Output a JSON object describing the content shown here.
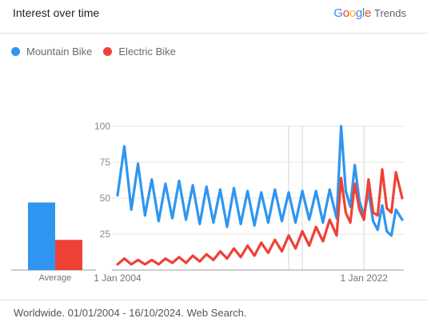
{
  "header": {
    "title": "Interest over time"
  },
  "brand": {
    "google": "Google",
    "trends": "Trends"
  },
  "colors": {
    "series1": "#2e96f0",
    "series2": "#ef4136",
    "google_blue": "#4285F4",
    "google_red": "#EA4335",
    "google_yellow": "#FBBC05",
    "google_green": "#34A853"
  },
  "chart_data": {
    "type": "line",
    "ylim": [
      0,
      100
    ],
    "yticks": [
      "100",
      "75",
      "50",
      "25"
    ],
    "xtick_labels": [
      "1 Jan 2004",
      "1 Jan 2022"
    ],
    "average_label": "Average",
    "series": [
      {
        "name": "Mountain Bike",
        "average": 47,
        "points": [
          [
            "2004-01-01",
            52
          ],
          [
            "2004-07-01",
            86
          ],
          [
            "2005-01-01",
            42
          ],
          [
            "2005-07-01",
            74
          ],
          [
            "2006-01-01",
            38
          ],
          [
            "2006-07-01",
            63
          ],
          [
            "2007-01-01",
            34
          ],
          [
            "2007-07-01",
            60
          ],
          [
            "2008-01-01",
            36
          ],
          [
            "2008-07-01",
            62
          ],
          [
            "2009-01-01",
            35
          ],
          [
            "2009-07-01",
            59
          ],
          [
            "2010-01-01",
            32
          ],
          [
            "2010-07-01",
            58
          ],
          [
            "2011-01-01",
            33
          ],
          [
            "2011-07-01",
            56
          ],
          [
            "2012-01-01",
            30
          ],
          [
            "2012-07-01",
            57
          ],
          [
            "2013-01-01",
            32
          ],
          [
            "2013-07-01",
            55
          ],
          [
            "2014-01-01",
            31
          ],
          [
            "2014-07-01",
            54
          ],
          [
            "2015-01-01",
            33
          ],
          [
            "2015-07-01",
            56
          ],
          [
            "2016-01-01",
            34
          ],
          [
            "2016-07-01",
            54
          ],
          [
            "2017-01-01",
            33
          ],
          [
            "2017-07-01",
            55
          ],
          [
            "2018-01-01",
            35
          ],
          [
            "2018-07-01",
            55
          ],
          [
            "2019-01-01",
            33
          ],
          [
            "2019-07-01",
            56
          ],
          [
            "2020-01-01",
            36
          ],
          [
            "2020-05-01",
            100
          ],
          [
            "2020-09-01",
            55
          ],
          [
            "2021-01-01",
            44
          ],
          [
            "2021-05-01",
            73
          ],
          [
            "2021-09-01",
            48
          ],
          [
            "2022-01-01",
            38
          ],
          [
            "2022-05-01",
            55
          ],
          [
            "2022-09-01",
            34
          ],
          [
            "2023-01-01",
            28
          ],
          [
            "2023-05-01",
            45
          ],
          [
            "2023-09-01",
            27
          ],
          [
            "2024-01-01",
            24
          ],
          [
            "2024-05-01",
            42
          ],
          [
            "2024-10-16",
            35
          ]
        ]
      },
      {
        "name": "Electric Bike",
        "average": 21,
        "points": [
          [
            "2004-01-01",
            4
          ],
          [
            "2004-07-01",
            8
          ],
          [
            "2005-01-01",
            4
          ],
          [
            "2005-07-01",
            7
          ],
          [
            "2006-01-01",
            4
          ],
          [
            "2006-07-01",
            7
          ],
          [
            "2007-01-01",
            4
          ],
          [
            "2007-07-01",
            8
          ],
          [
            "2008-01-01",
            5
          ],
          [
            "2008-07-01",
            9
          ],
          [
            "2009-01-01",
            5
          ],
          [
            "2009-07-01",
            10
          ],
          [
            "2010-01-01",
            6
          ],
          [
            "2010-07-01",
            11
          ],
          [
            "2011-01-01",
            7
          ],
          [
            "2011-07-01",
            13
          ],
          [
            "2012-01-01",
            8
          ],
          [
            "2012-07-01",
            15
          ],
          [
            "2013-01-01",
            9
          ],
          [
            "2013-07-01",
            17
          ],
          [
            "2014-01-01",
            10
          ],
          [
            "2014-07-01",
            19
          ],
          [
            "2015-01-01",
            12
          ],
          [
            "2015-07-01",
            21
          ],
          [
            "2016-01-01",
            13
          ],
          [
            "2016-07-01",
            24
          ],
          [
            "2017-01-01",
            15
          ],
          [
            "2017-07-01",
            27
          ],
          [
            "2018-01-01",
            17
          ],
          [
            "2018-07-01",
            30
          ],
          [
            "2019-01-01",
            20
          ],
          [
            "2019-07-01",
            35
          ],
          [
            "2020-01-01",
            24
          ],
          [
            "2020-05-01",
            64
          ],
          [
            "2020-09-01",
            40
          ],
          [
            "2021-01-01",
            33
          ],
          [
            "2021-05-01",
            60
          ],
          [
            "2021-09-01",
            42
          ],
          [
            "2022-01-01",
            35
          ],
          [
            "2022-05-01",
            63
          ],
          [
            "2022-09-01",
            40
          ],
          [
            "2023-01-01",
            38
          ],
          [
            "2023-05-01",
            70
          ],
          [
            "2023-09-01",
            43
          ],
          [
            "2024-01-01",
            40
          ],
          [
            "2024-05-01",
            68
          ],
          [
            "2024-10-16",
            50
          ]
        ]
      }
    ]
  },
  "footer": {
    "text": "Worldwide. 01/01/2004 - 16/10/2024. Web Search."
  }
}
